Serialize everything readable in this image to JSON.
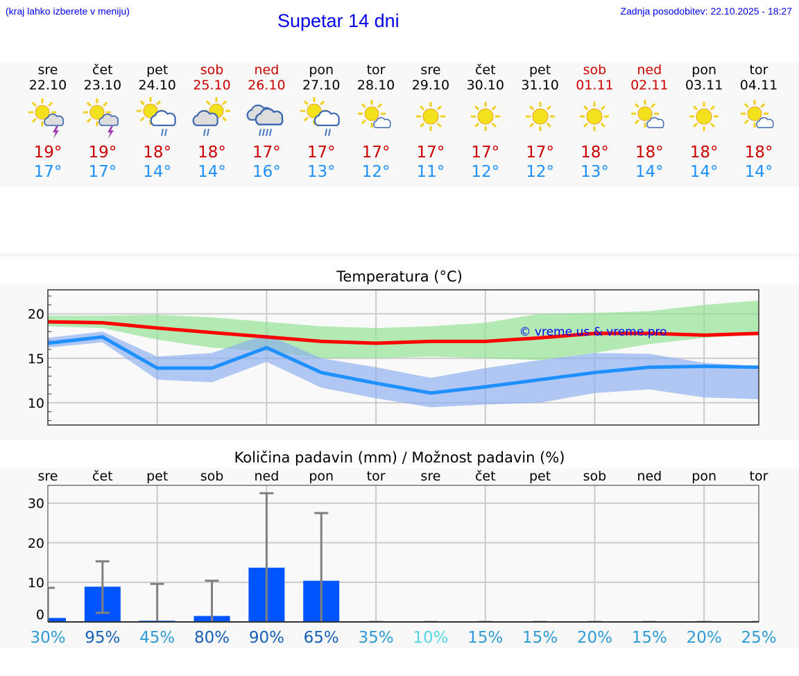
{
  "header": {
    "hint": "(kraj lahko izberete v meniju)",
    "title": "Supetar 14 dni",
    "updated": "Zadnja posodobitev: 22.10.2025 - 18:27"
  },
  "colors": {
    "max": "#cc0000",
    "min": "#1e90ff",
    "bar": "#0055ff",
    "pct_high": "#1560b8",
    "pct_mid": "#2e9bd6",
    "pct_low": "#55d5e5"
  },
  "days": [
    {
      "name": "sre",
      "date": "22.10",
      "weekend": false,
      "icon": "sun-cloud-thunder",
      "max": "19°",
      "min": "17°"
    },
    {
      "name": "čet",
      "date": "23.10",
      "weekend": false,
      "icon": "sun-cloud-thunder",
      "max": "19°",
      "min": "17°"
    },
    {
      "name": "pet",
      "date": "24.10",
      "weekend": false,
      "icon": "sun-cloud-rain",
      "max": "18°",
      "min": "14°"
    },
    {
      "name": "sob",
      "date": "25.10",
      "weekend": true,
      "icon": "cloud-sun-rain",
      "max": "18°",
      "min": "14°"
    },
    {
      "name": "ned",
      "date": "26.10",
      "weekend": true,
      "icon": "cloud-heavy-rain",
      "max": "17°",
      "min": "16°"
    },
    {
      "name": "pon",
      "date": "27.10",
      "weekend": false,
      "icon": "sun-cloud-rain",
      "max": "17°",
      "min": "13°"
    },
    {
      "name": "tor",
      "date": "28.10",
      "weekend": false,
      "icon": "sun-small-cloud",
      "max": "17°",
      "min": "12°"
    },
    {
      "name": "sre",
      "date": "29.10",
      "weekend": false,
      "icon": "sun",
      "max": "17°",
      "min": "11°"
    },
    {
      "name": "čet",
      "date": "30.10",
      "weekend": false,
      "icon": "sun",
      "max": "17°",
      "min": "12°"
    },
    {
      "name": "pet",
      "date": "31.10",
      "weekend": false,
      "icon": "sun",
      "max": "17°",
      "min": "12°"
    },
    {
      "name": "sob",
      "date": "01.11",
      "weekend": true,
      "icon": "sun",
      "max": "18°",
      "min": "13°"
    },
    {
      "name": "ned",
      "date": "02.11",
      "weekend": true,
      "icon": "sun-small-cloud",
      "max": "18°",
      "min": "14°"
    },
    {
      "name": "pon",
      "date": "03.11",
      "weekend": false,
      "icon": "sun",
      "max": "18°",
      "min": "14°"
    },
    {
      "name": "tor",
      "date": "04.11",
      "weekend": false,
      "icon": "sun-small-cloud",
      "max": "18°",
      "min": "14°"
    }
  ],
  "chart_data": [
    {
      "type": "line",
      "title": "Temperatura (°C)",
      "ylim": [
        7.5,
        22.7
      ],
      "yticks": [
        10,
        15,
        20
      ],
      "grid": true,
      "watermark": "© vreme.us & vreme.pro",
      "series": [
        {
          "name": "max",
          "values": [
            19.1,
            19.0,
            18.4,
            17.9,
            17.4,
            16.9,
            16.7,
            16.9,
            16.9,
            17.3,
            17.8,
            17.8,
            17.6,
            17.8
          ],
          "band_upper": [
            19.8,
            19.8,
            19.9,
            19.6,
            19.1,
            18.6,
            18.4,
            18.6,
            19.0,
            20.0,
            20.1,
            20.3,
            21.0,
            21.5
          ],
          "band_lower": [
            18.6,
            18.4,
            17.1,
            16.2,
            15.8,
            15.0,
            15.0,
            15.2,
            15.0,
            14.8,
            15.6,
            16.6,
            17.3,
            17.7
          ]
        },
        {
          "name": "min",
          "values": [
            16.7,
            17.4,
            13.9,
            13.9,
            16.2,
            13.4,
            12.2,
            11.1,
            11.8,
            12.6,
            13.4,
            14.0,
            14.1,
            14.0
          ],
          "band_upper": [
            17.3,
            18.0,
            15.2,
            15.6,
            17.7,
            15.0,
            14.0,
            12.8,
            13.9,
            14.8,
            15.6,
            15.5,
            14.5,
            14.1
          ],
          "band_lower": [
            16.2,
            16.8,
            12.6,
            12.3,
            14.6,
            11.7,
            10.5,
            9.5,
            9.8,
            10.0,
            11.1,
            11.5,
            10.6,
            10.4
          ]
        }
      ]
    },
    {
      "type": "bar",
      "title": "Količina padavin (mm) / Možnost padavin (%)",
      "ylim": [
        0,
        34.5
      ],
      "yticks": [
        0,
        10,
        20,
        30
      ],
      "grid": true,
      "categories": [
        "sre",
        "čet",
        "pet",
        "sob",
        "ned",
        "pon",
        "tor",
        "sre",
        "čet",
        "pet",
        "sob",
        "ned",
        "pon",
        "tor"
      ],
      "values": [
        1.0,
        8.9,
        0.3,
        1.5,
        13.7,
        10.4,
        0,
        0,
        0,
        0,
        0,
        0,
        0,
        0
      ],
      "err_low": [
        0,
        2.3,
        0,
        0,
        0,
        0,
        0,
        0,
        0,
        0,
        0,
        0,
        0,
        0
      ],
      "err_high": [
        8.6,
        15.3,
        9.6,
        10.4,
        32.5,
        27.5,
        0,
        0,
        0,
        0,
        0,
        0,
        0,
        0
      ],
      "probability": [
        "30%",
        "95%",
        "45%",
        "80%",
        "90%",
        "65%",
        "35%",
        "10%",
        "15%",
        "15%",
        "20%",
        "15%",
        "20%",
        "25%"
      ]
    }
  ]
}
